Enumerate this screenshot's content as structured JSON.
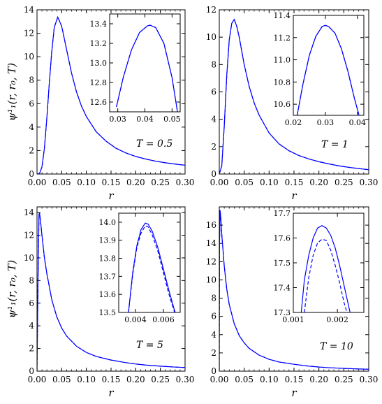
{
  "figure": {
    "ylabel": "ψ¹₁(r, r₀, T)",
    "xlabel": "r",
    "line_color": "#0000ff"
  },
  "chart_data": [
    {
      "type": "line",
      "panel": "top-left",
      "annotation": "T = 0.5",
      "xlabel": "r",
      "ylabel": "ψ¹₁(r, r₀, T)",
      "xlim": [
        0.0,
        0.3
      ],
      "ylim": [
        0,
        14
      ],
      "xticks": [
        "0.00",
        "0.05",
        "0.10",
        "0.15",
        "0.20",
        "0.25",
        "0.30"
      ],
      "yticks": [
        "0",
        "2",
        "4",
        "6",
        "8",
        "10",
        "12",
        "14"
      ],
      "series": [
        {
          "style": "solid",
          "x": [
            0.0,
            0.005,
            0.01,
            0.015,
            0.02,
            0.025,
            0.03,
            0.035,
            0.042,
            0.05,
            0.06,
            0.07,
            0.08,
            0.09,
            0.1,
            0.12,
            0.14,
            0.16,
            0.18,
            0.2,
            0.22,
            0.24,
            0.26,
            0.28,
            0.3
          ],
          "y": [
            0,
            0.05,
            0.6,
            2.2,
            4.8,
            7.8,
            10.5,
            12.5,
            13.38,
            12.6,
            10.6,
            8.6,
            7.0,
            5.8,
            4.9,
            3.6,
            2.8,
            2.2,
            1.8,
            1.5,
            1.28,
            1.1,
            0.96,
            0.85,
            0.75
          ]
        },
        {
          "style": "dashed",
          "x": [
            0.0,
            0.005,
            0.01,
            0.015,
            0.02,
            0.025,
            0.03,
            0.035,
            0.042,
            0.05,
            0.06,
            0.07,
            0.08,
            0.09,
            0.1,
            0.12,
            0.14,
            0.16,
            0.18,
            0.2,
            0.22,
            0.24,
            0.26,
            0.28,
            0.3
          ],
          "y": [
            0,
            0.05,
            0.6,
            2.2,
            4.8,
            7.8,
            10.5,
            12.5,
            13.38,
            12.6,
            10.6,
            8.6,
            7.0,
            5.8,
            4.9,
            3.6,
            2.8,
            2.2,
            1.8,
            1.5,
            1.28,
            1.1,
            0.96,
            0.85,
            0.75
          ]
        }
      ],
      "inset": {
        "xlim": [
          0.027,
          0.053
        ],
        "ylim": [
          12.5,
          13.5
        ],
        "xticks": [
          "0.03",
          "0.04",
          "0.05"
        ],
        "yticks": [
          "12.6",
          "12.8",
          "13.0",
          "13.2",
          "13.4"
        ],
        "series": [
          {
            "style": "solid",
            "x": [
              0.0295,
              0.032,
              0.035,
              0.038,
              0.041,
              0.042,
              0.044,
              0.047,
              0.05,
              0.052
            ],
            "y": [
              12.55,
              12.85,
              13.13,
              13.31,
              13.38,
              13.385,
              13.36,
              13.2,
              12.85,
              12.5
            ]
          },
          {
            "style": "dashed",
            "x": [
              0.0295,
              0.032,
              0.035,
              0.038,
              0.041,
              0.042,
              0.044,
              0.047,
              0.05,
              0.052
            ],
            "y": [
              12.55,
              12.85,
              13.13,
              13.31,
              13.38,
              13.385,
              13.36,
              13.2,
              12.85,
              12.5
            ]
          }
        ]
      }
    },
    {
      "type": "line",
      "panel": "top-right",
      "annotation": "T = 1",
      "xlabel": "r",
      "ylabel": "",
      "xlim": [
        0.0,
        0.3
      ],
      "ylim": [
        0,
        12
      ],
      "xticks": [
        "0.00",
        "0.05",
        "0.10",
        "0.15",
        "0.20",
        "0.25",
        "0.30"
      ],
      "yticks": [
        "0",
        "2",
        "4",
        "6",
        "8",
        "10",
        "12"
      ],
      "series": [
        {
          "style": "solid",
          "x": [
            0.0,
            0.005,
            0.01,
            0.015,
            0.02,
            0.025,
            0.03,
            0.035,
            0.04,
            0.05,
            0.06,
            0.07,
            0.08,
            0.1,
            0.12,
            0.14,
            0.16,
            0.18,
            0.2,
            0.22,
            0.24,
            0.26,
            0.28,
            0.3
          ],
          "y": [
            0,
            0.6,
            3.5,
            7.2,
            9.8,
            11.0,
            11.3,
            10.8,
            10.0,
            8.0,
            6.4,
            5.2,
            4.3,
            3.0,
            2.2,
            1.7,
            1.35,
            1.1,
            0.9,
            0.74,
            0.6,
            0.49,
            0.4,
            0.32
          ]
        },
        {
          "style": "dashed",
          "x": [
            0.0,
            0.005,
            0.01,
            0.015,
            0.02,
            0.025,
            0.03,
            0.035,
            0.04,
            0.05,
            0.06,
            0.07,
            0.08,
            0.1,
            0.12,
            0.14,
            0.16,
            0.18,
            0.2,
            0.22,
            0.24,
            0.26,
            0.28,
            0.3
          ],
          "y": [
            0,
            0.6,
            3.5,
            7.2,
            9.8,
            11.0,
            11.3,
            10.8,
            10.0,
            8.0,
            6.4,
            5.2,
            4.3,
            3.0,
            2.2,
            1.7,
            1.35,
            1.1,
            0.9,
            0.74,
            0.6,
            0.49,
            0.4,
            0.32
          ]
        }
      ],
      "inset": {
        "xlim": [
          0.02,
          0.042
        ],
        "ylim": [
          10.5,
          11.4
        ],
        "xticks": [
          "0.02",
          "0.03",
          "0.04"
        ],
        "yticks": [
          "10.6",
          "10.8",
          "11.0",
          "11.2",
          "11.4"
        ],
        "series": [
          {
            "style": "solid",
            "x": [
              0.0212,
              0.023,
              0.025,
              0.027,
              0.029,
              0.03,
              0.031,
              0.033,
              0.035,
              0.037,
              0.039,
              0.0405
            ],
            "y": [
              10.5,
              10.78,
              11.04,
              11.21,
              11.3,
              11.31,
              11.3,
              11.24,
              11.1,
              10.9,
              10.66,
              10.5
            ]
          },
          {
            "style": "dashed",
            "x": [
              0.0212,
              0.023,
              0.025,
              0.027,
              0.029,
              0.03,
              0.031,
              0.033,
              0.035,
              0.037,
              0.039,
              0.0405
            ],
            "y": [
              10.5,
              10.78,
              11.04,
              11.21,
              11.3,
              11.31,
              11.3,
              11.24,
              11.1,
              10.9,
              10.66,
              10.5
            ]
          }
        ]
      }
    },
    {
      "type": "line",
      "panel": "bottom-left",
      "annotation": "T = 5",
      "xlabel": "r",
      "ylabel": "ψ¹₁(r, r₀, T)",
      "xlim": [
        0.0,
        0.3
      ],
      "ylim": [
        0,
        14.5
      ],
      "xticks": [
        "0.00",
        "0.05",
        "0.10",
        "0.15",
        "0.20",
        "0.25",
        "0.30"
      ],
      "yticks": [
        "0",
        "2",
        "4",
        "6",
        "8",
        "10",
        "12",
        "14"
      ],
      "series": [
        {
          "style": "solid",
          "x": [
            0.0,
            0.002,
            0.004,
            0.005,
            0.007,
            0.01,
            0.015,
            0.02,
            0.03,
            0.04,
            0.05,
            0.06,
            0.08,
            0.1,
            0.12,
            0.15,
            0.18,
            0.2,
            0.22,
            0.25,
            0.28,
            0.3
          ],
          "y": [
            0,
            8.0,
            13.8,
            14.0,
            13.3,
            12.0,
            10.0,
            8.6,
            6.3,
            4.8,
            3.8,
            3.1,
            2.2,
            1.65,
            1.3,
            0.98,
            0.75,
            0.63,
            0.54,
            0.44,
            0.36,
            0.32
          ]
        },
        {
          "style": "dashed",
          "x": [
            0.0,
            0.002,
            0.004,
            0.005,
            0.007,
            0.01,
            0.015,
            0.02,
            0.03,
            0.04,
            0.05,
            0.06,
            0.08,
            0.1,
            0.12,
            0.15,
            0.18,
            0.2,
            0.22,
            0.25,
            0.28,
            0.3
          ],
          "y": [
            0,
            8.0,
            13.8,
            13.99,
            13.3,
            12.0,
            10.0,
            8.6,
            6.3,
            4.8,
            3.8,
            3.1,
            2.2,
            1.65,
            1.3,
            0.98,
            0.75,
            0.63,
            0.54,
            0.44,
            0.36,
            0.32
          ]
        }
      ],
      "inset": {
        "xlim": [
          0.0028,
          0.0072
        ],
        "ylim": [
          13.5,
          14.05
        ],
        "xticks": [
          "0.004",
          "0.006"
        ],
        "yticks": [
          "13.5",
          "13.6",
          "13.7",
          "13.8",
          "13.9",
          "14.0"
        ],
        "series": [
          {
            "style": "solid",
            "x": [
              0.0035,
              0.0038,
              0.0041,
              0.0044,
              0.0047,
              0.0049,
              0.0052,
              0.0056,
              0.006,
              0.0064,
              0.0068,
              0.007
            ],
            "y": [
              13.5,
              13.72,
              13.87,
              13.96,
              13.995,
              13.99,
              13.95,
              13.86,
              13.74,
              13.62,
              13.51,
              13.47
            ]
          },
          {
            "style": "dashed",
            "x": [
              0.0035,
              0.0038,
              0.0041,
              0.0044,
              0.0047,
              0.0049,
              0.0052,
              0.0056,
              0.006,
              0.0064,
              0.0068,
              0.0069
            ],
            "y": [
              13.5,
              13.71,
              13.86,
              13.94,
              13.98,
              13.975,
              13.93,
              13.84,
              13.72,
              13.6,
              13.5,
              13.48
            ]
          }
        ]
      }
    },
    {
      "type": "line",
      "panel": "bottom-right",
      "annotation": "T = 10",
      "xlabel": "r",
      "ylabel": "",
      "xlim": [
        0.0,
        0.3
      ],
      "ylim": [
        0,
        18
      ],
      "xticks": [
        "0.00",
        "0.05",
        "0.10",
        "0.15",
        "0.20",
        "0.25",
        "0.30"
      ],
      "yticks": [
        "0",
        "2",
        "4",
        "6",
        "8",
        "10",
        "12",
        "14",
        "16"
      ],
      "series": [
        {
          "style": "solid",
          "x": [
            0.0,
            0.0005,
            0.0016,
            0.003,
            0.005,
            0.01,
            0.015,
            0.02,
            0.03,
            0.04,
            0.05,
            0.06,
            0.08,
            0.1,
            0.12,
            0.15,
            0.18,
            0.2,
            0.22,
            0.25,
            0.28,
            0.3
          ],
          "y": [
            0,
            14.0,
            17.65,
            16.8,
            15.0,
            11.5,
            9.0,
            7.3,
            5.2,
            3.9,
            3.1,
            2.5,
            1.75,
            1.3,
            1.0,
            0.75,
            0.55,
            0.45,
            0.38,
            0.3,
            0.24,
            0.21
          ]
        },
        {
          "style": "dashed",
          "x": [
            0.0,
            0.0005,
            0.0016,
            0.003,
            0.005,
            0.01,
            0.015,
            0.02,
            0.03,
            0.04,
            0.05,
            0.06,
            0.08,
            0.1,
            0.12,
            0.15,
            0.18,
            0.2,
            0.22,
            0.25,
            0.28,
            0.3
          ],
          "y": [
            0,
            14.0,
            17.6,
            16.8,
            15.0,
            11.5,
            9.0,
            7.3,
            5.2,
            3.9,
            3.1,
            2.5,
            1.75,
            1.3,
            1.0,
            0.75,
            0.55,
            0.45,
            0.38,
            0.3,
            0.24,
            0.21
          ]
        }
      ],
      "inset": {
        "xlim": [
          0.001,
          0.0026
        ],
        "ylim": [
          17.3,
          17.7
        ],
        "xticks": [
          "0.001",
          "0.002"
        ],
        "yticks": [
          "17.3",
          "17.4",
          "17.5",
          "17.6",
          "17.7"
        ],
        "series": [
          {
            "style": "solid",
            "x": [
              0.00118,
              0.00125,
              0.00135,
              0.00145,
              0.00155,
              0.00165,
              0.00175,
              0.00185,
              0.00195,
              0.00205,
              0.00215,
              0.00225,
              0.0023
            ],
            "y": [
              17.3,
              17.43,
              17.53,
              17.6,
              17.64,
              17.65,
              17.64,
              17.61,
              17.56,
              17.49,
              17.41,
              17.33,
              17.29
            ]
          },
          {
            "style": "dashed",
            "x": [
              0.00125,
              0.00135,
              0.00145,
              0.00155,
              0.00165,
              0.00175,
              0.00185,
              0.00195,
              0.00205,
              0.00215,
              0.00225
            ],
            "y": [
              17.3,
              17.44,
              17.53,
              17.58,
              17.595,
              17.59,
              17.55,
              17.49,
              17.42,
              17.34,
              17.28
            ]
          }
        ]
      }
    }
  ]
}
